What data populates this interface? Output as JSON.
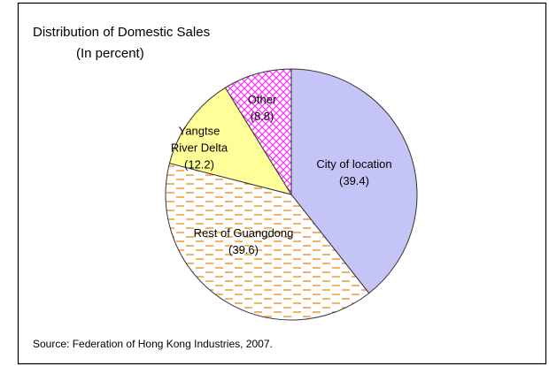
{
  "chart_data": {
    "type": "pie",
    "title": "Distribution of Domestic Sales",
    "subtitle": "(In percent)",
    "categories": [
      "City of location",
      "Rest of Guangdong",
      "Yangtse River Delta",
      "Other"
    ],
    "values": [
      39.4,
      39.6,
      12.2,
      8.8
    ],
    "value_labels": [
      "(39.4)",
      "(39.6)",
      "(12.2)",
      "(8.8)"
    ],
    "colors": [
      "#c4c4f6",
      "#f0a040",
      "#ffff99",
      "#ff33ff"
    ],
    "source": "Source: Federation of Hong Kong Industries, 2007."
  }
}
